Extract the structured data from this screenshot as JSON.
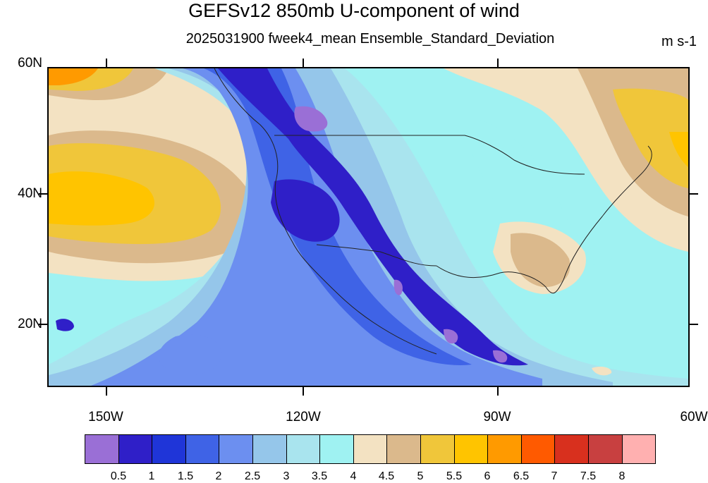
{
  "header": {
    "title": "GEFSv12 850mb U-component of wind",
    "subtitle": "2025031900 fweek4_mean Ensemble_Standard_Deviation",
    "units": "m s-1"
  },
  "map": {
    "lat_labels": [
      "60N",
      "40N",
      "20N"
    ],
    "lon_labels": [
      "150W",
      "120W",
      "90W",
      "60W"
    ],
    "region": "North America / Eastern Pacific",
    "field": "850mb U-component of wind ensemble standard deviation"
  },
  "colorbar": {
    "labels": [
      "0.5",
      "1",
      "1.5",
      "2",
      "2.5",
      "3",
      "3.5",
      "4",
      "4.5",
      "5",
      "5.5",
      "6",
      "6.5",
      "7",
      "7.5",
      "8"
    ],
    "colors": [
      "#9a6fd6",
      "#2f1fc8",
      "#1f35d8",
      "#3f63e6",
      "#6c8ff0",
      "#95c6ea",
      "#a9e4ee",
      "#9ff2f2",
      "#f3e2c2",
      "#dbb98c",
      "#f0c63a",
      "#ffc400",
      "#ff9a00",
      "#ff5a00",
      "#d8301e",
      "#c84040",
      "#ffb0b0"
    ]
  }
}
